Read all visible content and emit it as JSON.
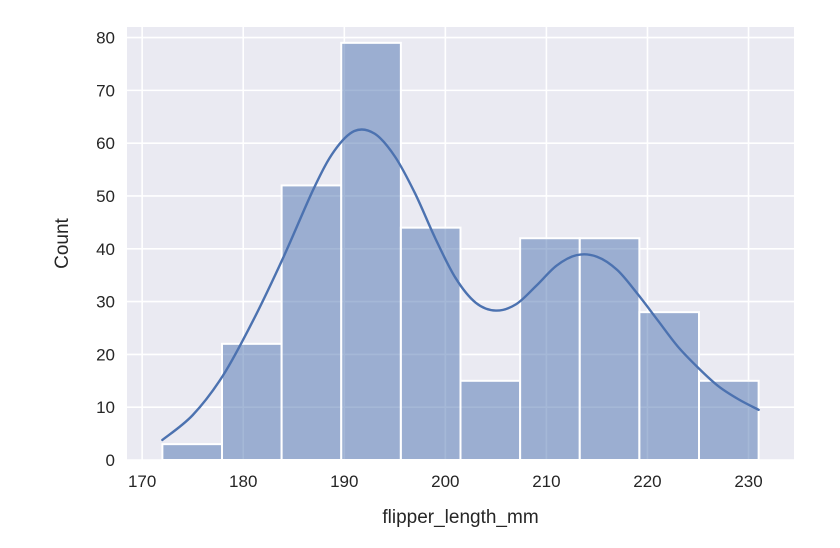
{
  "chart_data": {
    "type": "bar",
    "subtype": "histogram-with-kde",
    "xlabel": "flipper_length_mm",
    "ylabel": "Count",
    "xlim": [
      168.5,
      234.5
    ],
    "ylim": [
      0,
      82
    ],
    "xticks": [
      170,
      180,
      190,
      200,
      210,
      220,
      230
    ],
    "yticks": [
      0,
      10,
      20,
      30,
      40,
      50,
      60,
      70,
      80
    ],
    "grid": true,
    "bin_edges": [
      172.0,
      177.9,
      183.8,
      189.7,
      195.6,
      201.5,
      207.4,
      213.3,
      219.2,
      225.1,
      231.0
    ],
    "values": [
      3,
      22,
      52,
      79,
      44,
      15,
      42,
      42,
      28,
      15
    ],
    "kde": {
      "x": [
        172,
        175,
        178,
        181,
        184,
        187,
        189,
        191,
        193,
        195,
        197,
        199,
        201,
        203,
        205,
        207,
        209,
        211,
        213,
        215,
        217,
        219,
        221,
        223,
        225,
        227,
        229,
        231
      ],
      "y": [
        3.8,
        8.5,
        16.0,
        26.5,
        38.5,
        51.5,
        58.5,
        62.3,
        61.8,
        57.5,
        50.5,
        42.0,
        34.5,
        29.8,
        28.3,
        29.5,
        33.0,
        36.8,
        38.8,
        38.5,
        36.0,
        31.5,
        26.5,
        21.5,
        17.5,
        14.0,
        11.5,
        9.5
      ]
    },
    "colors": {
      "background": "#eaeaf2",
      "bar": "#4c72b0",
      "line": "#4c72b0",
      "grid": "#ffffff"
    }
  }
}
